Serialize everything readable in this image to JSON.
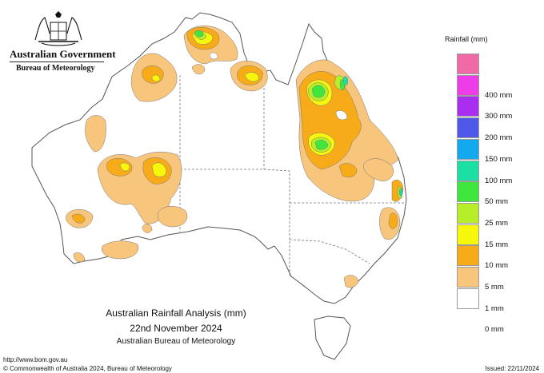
{
  "header": {
    "government": "Australian Government",
    "bureau": "Bureau of Meteorology"
  },
  "legend": {
    "title": "Rainfall (mm)",
    "items": [
      {
        "label": "",
        "color": "#f06aa8"
      },
      {
        "label": "400 mm",
        "color": "#ee3ce8"
      },
      {
        "label": "300 mm",
        "color": "#a92ef0"
      },
      {
        "label": "200 mm",
        "color": "#4f58e8"
      },
      {
        "label": "150 mm",
        "color": "#14a9ee"
      },
      {
        "label": "100 mm",
        "color": "#1cdfa6"
      },
      {
        "label": "50 mm",
        "color": "#3ee63e"
      },
      {
        "label": "25 mm",
        "color": "#b6ef2a"
      },
      {
        "label": "15 mm",
        "color": "#f7f70c"
      },
      {
        "label": "10 mm",
        "color": "#f8ab19"
      },
      {
        "label": "5 mm",
        "color": "#f8c57c"
      },
      {
        "label": "1 mm",
        "color": "#ffffff"
      },
      {
        "label": "0 mm",
        "color": ""
      }
    ]
  },
  "caption": {
    "line1": "Australian Rainfall Analysis (mm)",
    "line2": "22nd November 2024",
    "line3": "Australian Bureau of Meteorology"
  },
  "footer": {
    "url": "http://www.bom.gov.au",
    "copyright": "© Commonwealth of Australia 2024, Bureau of Meteorology",
    "issued": "Issued: 22/11/2024"
  },
  "map": {
    "coastline_color": "#555555",
    "fill_colors": {
      "1mm": "#f8c57c",
      "5mm": "#f8ab19",
      "10mm": "#f7f70c",
      "15mm": "#b6ef2a",
      "25mm": "#3ee63e",
      "50mm": "#1cdfa6"
    }
  }
}
